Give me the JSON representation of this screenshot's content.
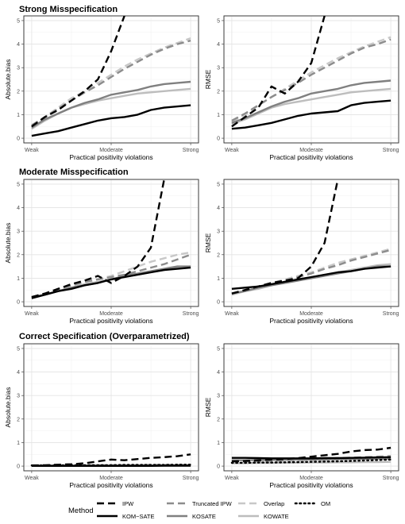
{
  "row_titles": [
    "Strong Misspecification",
    "Moderate Misspecification",
    "Correct Specification (Overparametrized)"
  ],
  "legend": {
    "title": "Method",
    "items": [
      {
        "name": "IPW",
        "color": "#000000",
        "dash": "dashed"
      },
      {
        "name": "Truncated IPW",
        "color": "#8c8c8c",
        "dash": "dashed"
      },
      {
        "name": "Overlap",
        "color": "#c8c8c8",
        "dash": "dashed"
      },
      {
        "name": "OM",
        "color": "#000000",
        "dash": "dotted"
      },
      {
        "name": "KOM−SATE",
        "color": "#000000",
        "dash": "solid"
      },
      {
        "name": "KOSATE",
        "color": "#808080",
        "dash": "solid"
      },
      {
        "name": "KOWATE",
        "color": "#bdbdbd",
        "dash": "solid"
      }
    ]
  },
  "chart_data": [
    {
      "type": "line",
      "row": 0,
      "col": 0,
      "xlabel": "Practical positivity violations",
      "ylabel": "Absolute.bias",
      "x_ticks": [
        "Weak",
        "Moderate",
        "Strong"
      ],
      "ylim": [
        -0.2,
        5.2
      ],
      "y_ticks": [
        0,
        1,
        2,
        3,
        4,
        5
      ],
      "x": [
        1,
        2,
        3,
        4,
        5,
        6,
        7,
        8,
        9,
        10,
        11,
        12,
        13
      ],
      "series": [
        {
          "name": "Overlap",
          "values": [
            0.5,
            0.9,
            1.3,
            1.7,
            2.0,
            2.35,
            2.7,
            3.05,
            3.35,
            3.6,
            3.85,
            4.05,
            4.25
          ]
        },
        {
          "name": "Truncated IPW",
          "values": [
            0.55,
            0.9,
            1.25,
            1.6,
            1.95,
            2.25,
            2.6,
            2.95,
            3.25,
            3.55,
            3.8,
            4.0,
            4.15
          ]
        },
        {
          "name": "KOWATE",
          "values": [
            0.4,
            0.75,
            1.05,
            1.3,
            1.45,
            1.6,
            1.7,
            1.8,
            1.9,
            1.95,
            2.0,
            2.05,
            2.1
          ]
        },
        {
          "name": "KOSATE",
          "values": [
            0.45,
            0.8,
            1.05,
            1.3,
            1.5,
            1.65,
            1.85,
            1.95,
            2.05,
            2.2,
            2.3,
            2.35,
            2.4
          ]
        },
        {
          "name": "KOM−SATE",
          "values": [
            0.1,
            0.2,
            0.3,
            0.45,
            0.6,
            0.75,
            0.85,
            0.9,
            1.0,
            1.2,
            1.3,
            1.35,
            1.4
          ]
        },
        {
          "name": "IPW",
          "values": [
            0.5,
            0.9,
            1.2,
            1.6,
            2.0,
            2.5,
            3.7,
            5.2,
            null,
            null,
            null,
            null,
            null
          ]
        }
      ]
    },
    {
      "type": "line",
      "row": 0,
      "col": 1,
      "xlabel": "Practical positivity violations",
      "ylabel": "RMSE",
      "x_ticks": [
        "Weak",
        "Moderate",
        "Strong"
      ],
      "ylim": [
        -0.2,
        5.2
      ],
      "y_ticks": [
        0,
        1,
        2,
        3,
        4,
        5
      ],
      "x": [
        1,
        2,
        3,
        4,
        5,
        6,
        7,
        8,
        9,
        10,
        11,
        12,
        13
      ],
      "series": [
        {
          "name": "Overlap",
          "values": [
            0.7,
            1.0,
            1.4,
            1.75,
            2.1,
            2.45,
            2.8,
            3.1,
            3.4,
            3.65,
            3.9,
            4.1,
            4.3
          ]
        },
        {
          "name": "Truncated IPW",
          "values": [
            0.75,
            1.05,
            1.4,
            1.75,
            2.05,
            2.35,
            2.7,
            3.0,
            3.3,
            3.6,
            3.85,
            4.0,
            4.2
          ]
        },
        {
          "name": "KOWATE",
          "values": [
            0.6,
            0.8,
            1.05,
            1.3,
            1.45,
            1.55,
            1.65,
            1.75,
            1.85,
            1.95,
            2.0,
            2.05,
            2.1
          ]
        },
        {
          "name": "KOSATE",
          "values": [
            0.65,
            0.85,
            1.1,
            1.35,
            1.55,
            1.7,
            1.9,
            2.0,
            2.1,
            2.25,
            2.35,
            2.4,
            2.45
          ]
        },
        {
          "name": "KOM−SATE",
          "values": [
            0.4,
            0.45,
            0.55,
            0.65,
            0.8,
            0.95,
            1.05,
            1.1,
            1.15,
            1.4,
            1.5,
            1.55,
            1.6
          ]
        },
        {
          "name": "IPW",
          "values": [
            0.5,
            0.9,
            1.3,
            2.2,
            1.9,
            2.4,
            3.2,
            5.2,
            null,
            null,
            null,
            null,
            null
          ]
        }
      ]
    },
    {
      "type": "line",
      "row": 1,
      "col": 0,
      "xlabel": "Practical positivity violations",
      "ylabel": "Absolute.bias",
      "x_ticks": [
        "Weak",
        "Moderate",
        "Strong"
      ],
      "ylim": [
        -0.2,
        5.2
      ],
      "y_ticks": [
        0,
        1,
        2,
        3,
        4,
        5
      ],
      "x": [
        1,
        2,
        3,
        4,
        5,
        6,
        7,
        8,
        9,
        10,
        11,
        12,
        13
      ],
      "series": [
        {
          "name": "Overlap",
          "values": [
            0.2,
            0.35,
            0.5,
            0.65,
            0.8,
            0.95,
            1.1,
            1.3,
            1.5,
            1.7,
            1.85,
            2.0,
            2.1
          ]
        },
        {
          "name": "Truncated IPW",
          "values": [
            0.2,
            0.35,
            0.55,
            0.7,
            0.85,
            0.95,
            1.05,
            1.15,
            1.3,
            1.45,
            1.6,
            1.8,
            2.0
          ]
        },
        {
          "name": "KOWATE",
          "values": [
            0.15,
            0.3,
            0.45,
            0.6,
            0.75,
            0.85,
            0.95,
            1.05,
            1.15,
            1.25,
            1.35,
            1.45,
            1.5
          ]
        },
        {
          "name": "KOSATE",
          "values": [
            0.2,
            0.3,
            0.45,
            0.6,
            0.7,
            0.8,
            0.95,
            1.1,
            1.2,
            1.3,
            1.4,
            1.5,
            1.5
          ]
        },
        {
          "name": "KOM−SATE",
          "values": [
            0.15,
            0.3,
            0.45,
            0.55,
            0.7,
            0.8,
            0.95,
            1.05,
            1.15,
            1.25,
            1.35,
            1.4,
            1.45
          ]
        },
        {
          "name": "IPW",
          "values": [
            0.2,
            0.35,
            0.55,
            0.75,
            0.9,
            1.1,
            0.8,
            1.1,
            1.5,
            2.3,
            5.2,
            null,
            null
          ]
        }
      ]
    },
    {
      "type": "line",
      "row": 1,
      "col": 1,
      "xlabel": "Practical positivity violations",
      "ylabel": "RMSE",
      "x_ticks": [
        "Weak",
        "Moderate",
        "Strong"
      ],
      "ylim": [
        -0.2,
        5.2
      ],
      "y_ticks": [
        0,
        1,
        2,
        3,
        4,
        5
      ],
      "x": [
        1,
        2,
        3,
        4,
        5,
        6,
        7,
        8,
        9,
        10,
        11,
        12,
        13
      ],
      "series": [
        {
          "name": "Overlap",
          "values": [
            0.35,
            0.5,
            0.65,
            0.8,
            0.95,
            1.1,
            1.25,
            1.45,
            1.65,
            1.8,
            1.95,
            2.1,
            2.25
          ]
        },
        {
          "name": "Truncated IPW",
          "values": [
            0.35,
            0.5,
            0.65,
            0.8,
            0.9,
            1.05,
            1.2,
            1.4,
            1.55,
            1.75,
            1.9,
            2.05,
            2.2
          ]
        },
        {
          "name": "KOWATE",
          "values": [
            0.3,
            0.45,
            0.55,
            0.7,
            0.85,
            0.95,
            1.05,
            1.15,
            1.25,
            1.35,
            1.45,
            1.55,
            1.6
          ]
        },
        {
          "name": "KOSATE",
          "values": [
            0.35,
            0.45,
            0.6,
            0.7,
            0.8,
            0.9,
            1.0,
            1.1,
            1.2,
            1.3,
            1.4,
            1.5,
            1.5
          ]
        },
        {
          "name": "KOM−SATE",
          "values": [
            0.55,
            0.6,
            0.65,
            0.75,
            0.85,
            0.95,
            1.05,
            1.15,
            1.25,
            1.3,
            1.4,
            1.45,
            1.5
          ]
        },
        {
          "name": "IPW",
          "values": [
            0.35,
            0.5,
            0.65,
            0.8,
            0.9,
            1.0,
            1.5,
            2.5,
            5.2,
            null,
            null,
            null,
            null
          ]
        }
      ]
    },
    {
      "type": "line",
      "row": 2,
      "col": 0,
      "xlabel": "Practical positivity violations",
      "ylabel": "Absolute.bias",
      "x_ticks": [
        "Weak",
        "Moderate",
        "Strong"
      ],
      "ylim": [
        -0.2,
        5.2
      ],
      "y_ticks": [
        0,
        1,
        2,
        3,
        4,
        5
      ],
      "x": [
        1,
        2,
        3,
        4,
        5,
        6,
        7,
        8,
        9,
        10,
        11,
        12,
        13
      ],
      "series": [
        {
          "name": "Overlap",
          "values": [
            0.02,
            0.02,
            0.02,
            0.02,
            0.02,
            0.02,
            0.02,
            0.02,
            0.02,
            0.02,
            0.02,
            0.02,
            0.02
          ]
        },
        {
          "name": "Truncated IPW",
          "values": [
            0.03,
            0.03,
            0.03,
            0.03,
            0.03,
            0.04,
            0.04,
            0.04,
            0.04,
            0.05,
            0.05,
            0.05,
            0.05
          ]
        },
        {
          "name": "KOWATE",
          "values": [
            0.01,
            0.01,
            0.01,
            0.01,
            0.01,
            0.01,
            0.01,
            0.01,
            0.01,
            0.01,
            0.01,
            0.01,
            0.01
          ]
        },
        {
          "name": "KOSATE",
          "values": [
            0.02,
            0.02,
            0.02,
            0.02,
            0.02,
            0.02,
            0.02,
            0.03,
            0.03,
            0.03,
            0.03,
            0.03,
            0.03
          ]
        },
        {
          "name": "KOM−SATE",
          "values": [
            0.01,
            0.01,
            0.01,
            0.01,
            0.01,
            0.01,
            0.01,
            0.01,
            0.01,
            0.01,
            0.02,
            0.02,
            0.02
          ]
        },
        {
          "name": "OM",
          "values": [
            0.03,
            0.03,
            0.03,
            0.04,
            0.04,
            0.04,
            0.04,
            0.05,
            0.05,
            0.05,
            0.05,
            0.06,
            0.06
          ]
        },
        {
          "name": "IPW",
          "values": [
            0.03,
            0.04,
            0.06,
            0.08,
            0.12,
            0.2,
            0.28,
            0.25,
            0.3,
            0.35,
            0.38,
            0.42,
            0.5
          ]
        }
      ]
    },
    {
      "type": "line",
      "row": 2,
      "col": 1,
      "xlabel": "Practical positivity violations",
      "ylabel": "RMSE",
      "x_ticks": [
        "Weak",
        "Moderate",
        "Strong"
      ],
      "ylim": [
        -0.2,
        5.2
      ],
      "y_ticks": [
        0,
        1,
        2,
        3,
        4,
        5
      ],
      "x": [
        1,
        2,
        3,
        4,
        5,
        6,
        7,
        8,
        9,
        10,
        11,
        12,
        13
      ],
      "series": [
        {
          "name": "Overlap",
          "values": [
            0.18,
            0.19,
            0.2,
            0.21,
            0.22,
            0.23,
            0.25,
            0.26,
            0.28,
            0.3,
            0.32,
            0.34,
            0.36
          ]
        },
        {
          "name": "Truncated IPW",
          "values": [
            0.2,
            0.21,
            0.22,
            0.24,
            0.26,
            0.28,
            0.3,
            0.32,
            0.34,
            0.36,
            0.38,
            0.4,
            0.42
          ]
        },
        {
          "name": "KOWATE",
          "values": [
            0.12,
            0.12,
            0.13,
            0.13,
            0.14,
            0.14,
            0.15,
            0.15,
            0.16,
            0.16,
            0.17,
            0.17,
            0.18
          ]
        },
        {
          "name": "KOSATE",
          "values": [
            0.25,
            0.25,
            0.26,
            0.26,
            0.27,
            0.28,
            0.28,
            0.29,
            0.3,
            0.3,
            0.31,
            0.32,
            0.32
          ]
        },
        {
          "name": "KOM−SATE",
          "values": [
            0.35,
            0.35,
            0.34,
            0.33,
            0.33,
            0.33,
            0.33,
            0.34,
            0.34,
            0.35,
            0.36,
            0.37,
            0.38
          ]
        },
        {
          "name": "OM",
          "values": [
            0.14,
            0.14,
            0.15,
            0.15,
            0.16,
            0.17,
            0.18,
            0.19,
            0.2,
            0.22,
            0.24,
            0.26,
            0.28
          ]
        },
        {
          "name": "IPW",
          "values": [
            0.2,
            0.22,
            0.25,
            0.28,
            0.3,
            0.34,
            0.4,
            0.46,
            0.52,
            0.62,
            0.68,
            0.7,
            0.78
          ]
        }
      ]
    }
  ]
}
